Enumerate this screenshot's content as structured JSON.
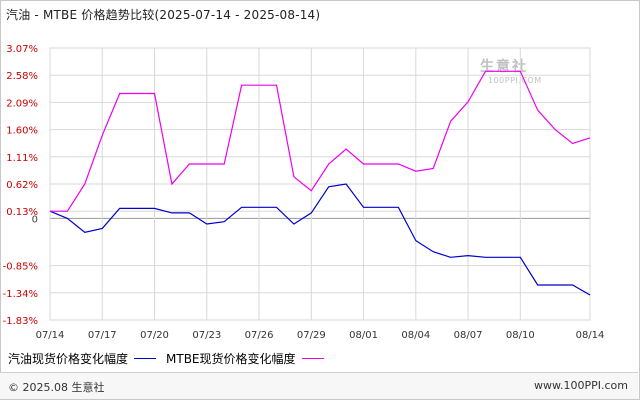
{
  "title": "汽油 - MTBE 价格趋势比较(2025-07-14 - 2025-08-14)",
  "watermark": {
    "brand": "生意社",
    "site": "100PPI.COM"
  },
  "footer": {
    "copyright": "© 2025.08 生意社",
    "site": "www.100PPI.com"
  },
  "colors": {
    "gasoline": "#0000cc",
    "mtbe": "#ee00ee",
    "grid": "#d8d8d8",
    "zero": "#999999"
  },
  "chart_data": {
    "type": "line",
    "x": [
      "07/14",
      "07/15",
      "07/16",
      "07/17",
      "07/18",
      "07/19",
      "07/20",
      "07/21",
      "07/22",
      "07/23",
      "07/24",
      "07/25",
      "07/26",
      "07/27",
      "07/28",
      "07/29",
      "07/30",
      "07/31",
      "08/01",
      "08/02",
      "08/03",
      "08/04",
      "08/05",
      "08/06",
      "08/07",
      "08/08",
      "08/09",
      "08/10",
      "08/11",
      "08/12",
      "08/13",
      "08/14"
    ],
    "x_tick_labels": [
      "07/14",
      "07/17",
      "07/20",
      "07/23",
      "07/26",
      "07/29",
      "08/01",
      "08/04",
      "08/07",
      "08/10",
      "08/14"
    ],
    "y_tick_labels": [
      "3.07%",
      "2.58%",
      "2.09%",
      "1.60%",
      "1.11%",
      "0.62%",
      "0.13%",
      "0",
      "-0.85%",
      "-1.34%",
      "-1.83%"
    ],
    "ylim": [
      -1.83,
      3.07
    ],
    "series": [
      {
        "name": "汽油现货价格变化幅度",
        "values": [
          0.13,
          0.0,
          -0.25,
          -0.18,
          0.18,
          0.18,
          0.18,
          0.1,
          0.1,
          -0.1,
          -0.06,
          0.2,
          0.2,
          0.2,
          -0.1,
          0.1,
          0.57,
          0.62,
          0.2,
          0.2,
          0.2,
          -0.4,
          -0.6,
          -0.7,
          -0.67,
          -0.7,
          -0.7,
          -0.7,
          -1.2,
          -1.2,
          -1.2,
          -1.38
        ]
      },
      {
        "name": "MTBE现货价格变化幅度",
        "values": [
          0.13,
          0.13,
          0.62,
          1.5,
          2.25,
          2.25,
          2.25,
          0.62,
          0.98,
          0.98,
          0.98,
          2.4,
          2.4,
          2.4,
          0.75,
          0.5,
          0.98,
          1.25,
          0.98,
          0.98,
          0.98,
          0.85,
          0.9,
          1.75,
          2.1,
          2.65,
          2.65,
          2.65,
          1.95,
          1.6,
          1.35,
          1.45
        ]
      }
    ],
    "grid": true,
    "legend_position": "bottom-left"
  }
}
